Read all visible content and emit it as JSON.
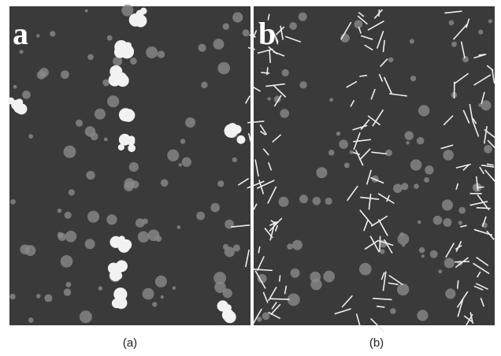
{
  "panels": [
    {
      "label": "a",
      "caption": "(a)"
    },
    {
      "label": "b",
      "caption": "(b)"
    }
  ]
}
